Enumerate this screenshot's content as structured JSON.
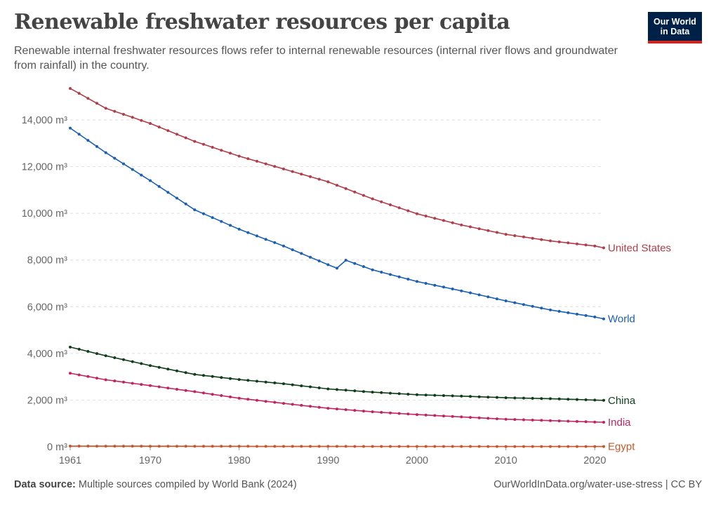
{
  "header": {
    "title": "Renewable freshwater resources per capita",
    "subtitle": "Renewable internal freshwater resources flows refer to internal renewable resources (internal river flows and groundwater from rainfall) in the country.",
    "logo_line1": "Our World",
    "logo_line2": "in Data"
  },
  "footer": {
    "source_label": "Data source:",
    "source_text": "Multiple sources compiled by World Bank (2024)",
    "url_text": "OurWorldInData.org/water-use-stress | CC BY"
  },
  "chart_data": {
    "type": "line",
    "title": "Renewable freshwater resources per capita",
    "xlabel": "",
    "ylabel": "",
    "xlim": [
      1961,
      2021
    ],
    "ylim": [
      0,
      15500
    ],
    "x_ticks": [
      1961,
      1970,
      1980,
      1990,
      2000,
      2010,
      2020
    ],
    "y_ticks": [
      0,
      2000,
      4000,
      6000,
      8000,
      10000,
      12000,
      14000
    ],
    "y_tick_labels": [
      "0 m³",
      "2,000 m³",
      "4,000 m³",
      "6,000 m³",
      "8,000 m³",
      "10,000 m³",
      "12,000 m³",
      "14,000 m³"
    ],
    "grid": "horizontal dashed",
    "legend": "inline labels at line ends (right)",
    "series": [
      {
        "name": "United States",
        "color": "#b13c4a",
        "anchors": [
          [
            1961,
            15350
          ],
          [
            1965,
            14500
          ],
          [
            1970,
            13850
          ],
          [
            1975,
            13080
          ],
          [
            1980,
            12450
          ],
          [
            1985,
            11900
          ],
          [
            1990,
            11350
          ],
          [
            1995,
            10620
          ],
          [
            2000,
            9980
          ],
          [
            2005,
            9500
          ],
          [
            2010,
            9100
          ],
          [
            2015,
            8820
          ],
          [
            2020,
            8600
          ],
          [
            2021,
            8520
          ]
        ]
      },
      {
        "name": "World",
        "color": "#1a5fb4",
        "anchors": [
          [
            1961,
            13650
          ],
          [
            1965,
            12600
          ],
          [
            1970,
            11400
          ],
          [
            1975,
            10150
          ],
          [
            1980,
            9320
          ],
          [
            1985,
            8600
          ],
          [
            1990,
            7800
          ],
          [
            1991,
            7650
          ],
          [
            1992,
            7990
          ],
          [
            1995,
            7580
          ],
          [
            2000,
            7080
          ],
          [
            2005,
            6680
          ],
          [
            2010,
            6250
          ],
          [
            2015,
            5860
          ],
          [
            2020,
            5560
          ],
          [
            2021,
            5480
          ]
        ]
      },
      {
        "name": "China",
        "color": "#0f3d1a",
        "anchors": [
          [
            1961,
            4270
          ],
          [
            1965,
            3900
          ],
          [
            1970,
            3480
          ],
          [
            1975,
            3100
          ],
          [
            1980,
            2880
          ],
          [
            1985,
            2700
          ],
          [
            1990,
            2480
          ],
          [
            1995,
            2340
          ],
          [
            2000,
            2230
          ],
          [
            2005,
            2170
          ],
          [
            2010,
            2100
          ],
          [
            2015,
            2060
          ],
          [
            2020,
            2000
          ],
          [
            2021,
            1990
          ]
        ]
      },
      {
        "name": "India",
        "color": "#c3245f",
        "anchors": [
          [
            1961,
            3150
          ],
          [
            1965,
            2870
          ],
          [
            1970,
            2620
          ],
          [
            1975,
            2360
          ],
          [
            1980,
            2080
          ],
          [
            1985,
            1860
          ],
          [
            1990,
            1650
          ],
          [
            1995,
            1500
          ],
          [
            2000,
            1380
          ],
          [
            2005,
            1280
          ],
          [
            2010,
            1180
          ],
          [
            2015,
            1120
          ],
          [
            2020,
            1060
          ],
          [
            2021,
            1050
          ]
        ]
      },
      {
        "name": "Egypt",
        "color": "#c7582a",
        "anchors": [
          [
            1961,
            30
          ],
          [
            1970,
            25
          ],
          [
            1980,
            20
          ],
          [
            1990,
            17
          ],
          [
            2000,
            15
          ],
          [
            2010,
            13
          ],
          [
            2021,
            12
          ]
        ]
      }
    ]
  }
}
